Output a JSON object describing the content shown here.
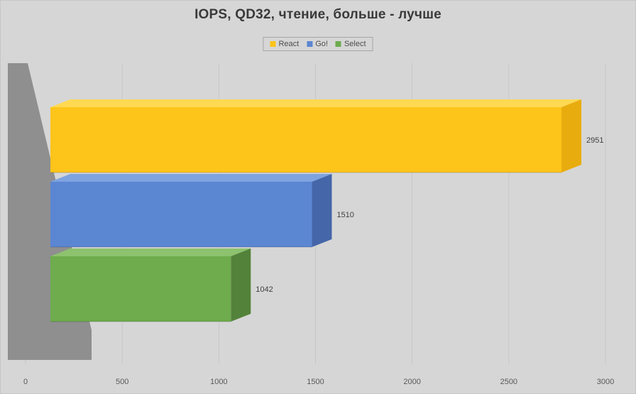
{
  "colors": {
    "background": "#D6D6D6",
    "wall": "#8F8F8F",
    "gridline": "#C7C7C7",
    "title_text": "#3A3A3A",
    "axis_text": "#595959",
    "value_label_text": "#404040",
    "legend_text": "#4D4D4D",
    "legend_border": "#A6A6A6"
  },
  "chart_data": {
    "type": "bar",
    "orientation": "horizontal",
    "style": "3d",
    "title": "IOPS, QD32, чтение, больше - лучше",
    "categories": [
      "React",
      "Go!",
      "Select"
    ],
    "values": [
      2951,
      1510,
      1042
    ],
    "series": [
      {
        "name": "React",
        "value": 2951,
        "data_label": "2951",
        "color": "#FDC41A",
        "color_top": "#FFD952",
        "color_side": "#E9AC0E"
      },
      {
        "name": "Go!",
        "value": 1510,
        "data_label": "1510",
        "color": "#5B86D2",
        "color_top": "#7EA3DF",
        "color_side": "#4566A8"
      },
      {
        "name": "Select",
        "value": 1042,
        "data_label": "1042",
        "color": "#6EAC4E",
        "color_top": "#8DC26E",
        "color_side": "#53823A"
      }
    ],
    "xlim": [
      0,
      3000
    ],
    "x_ticks": [
      0,
      500,
      1000,
      1500,
      2000,
      2500,
      3000
    ],
    "grid": true,
    "legend_position": "top",
    "legend": [
      "React",
      "Go!",
      "Select"
    ]
  }
}
